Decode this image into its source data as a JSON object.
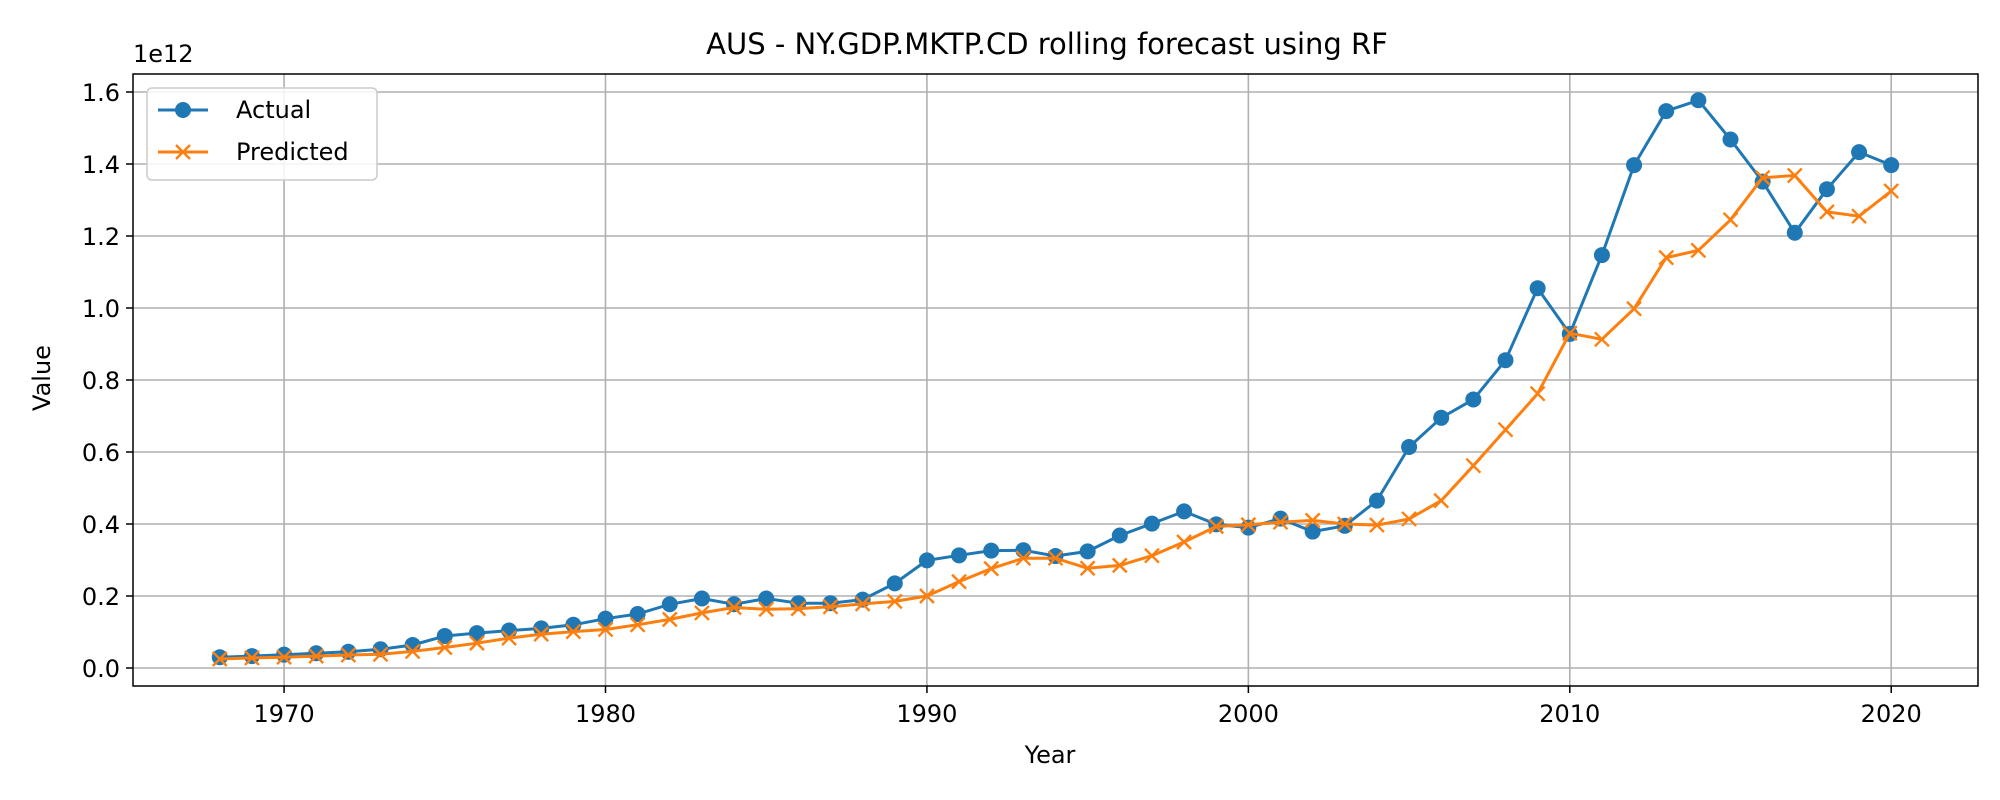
{
  "chart_data": {
    "type": "line",
    "title": "AUS - NY.GDP.MKTP.CD rolling forecast using RF",
    "xlabel": "Year",
    "ylabel": "Value",
    "y_offset_label": "1e12",
    "xlim": [
      1965.3,
      2022.7
    ],
    "ylim": [
      -0.05,
      1.65
    ],
    "x_ticks": [
      1970,
      1980,
      1990,
      2000,
      2010,
      2020
    ],
    "x_tick_labels": [
      "1970",
      "1980",
      "1990",
      "2000",
      "2010",
      "2020"
    ],
    "y_ticks": [
      0.0,
      0.2,
      0.4,
      0.6,
      0.8,
      1.0,
      1.2,
      1.4,
      1.6
    ],
    "y_tick_labels": [
      "0.0",
      "0.2",
      "0.4",
      "0.6",
      "0.8",
      "1.0",
      "1.2",
      "1.4",
      "1.6"
    ],
    "grid": true,
    "legend_position": "top-left",
    "x": [
      1968,
      1969,
      1970,
      1971,
      1972,
      1973,
      1974,
      1975,
      1976,
      1977,
      1978,
      1979,
      1980,
      1981,
      1982,
      1983,
      1984,
      1985,
      1986,
      1987,
      1988,
      1989,
      1990,
      1991,
      1992,
      1993,
      1994,
      1995,
      1996,
      1997,
      1998,
      1999,
      2000,
      2001,
      2002,
      2003,
      2004,
      2005,
      2006,
      2007,
      2008,
      2009,
      2010,
      2011,
      2012,
      2013,
      2014,
      2015,
      2016,
      2017,
      2018,
      2019,
      2020
    ],
    "series": [
      {
        "name": "Actual",
        "color": "#1f77b4",
        "marker": "circle",
        "values": [
          0.03,
          0.033,
          0.037,
          0.041,
          0.045,
          0.052,
          0.064,
          0.089,
          0.097,
          0.104,
          0.11,
          0.12,
          0.137,
          0.15,
          0.177,
          0.193,
          0.177,
          0.193,
          0.18,
          0.18,
          0.19,
          0.235,
          0.299,
          0.313,
          0.326,
          0.327,
          0.311,
          0.324,
          0.368,
          0.401,
          0.435,
          0.399,
          0.39,
          0.415,
          0.379,
          0.395,
          0.465,
          0.614,
          0.695,
          0.746,
          0.855,
          1.055,
          0.928,
          1.147,
          1.397,
          1.547,
          1.577,
          1.468,
          1.351,
          1.209,
          1.33,
          1.433,
          1.397
        ]
      },
      {
        "name": "Predicted",
        "color": "#ff7f0e",
        "marker": "x",
        "values": [
          0.025,
          0.028,
          0.03,
          0.033,
          0.036,
          0.038,
          0.046,
          0.057,
          0.069,
          0.083,
          0.094,
          0.101,
          0.107,
          0.12,
          0.135,
          0.153,
          0.168,
          0.163,
          0.165,
          0.17,
          0.178,
          0.185,
          0.2,
          0.24,
          0.276,
          0.305,
          0.305,
          0.277,
          0.285,
          0.312,
          0.35,
          0.393,
          0.398,
          0.405,
          0.41,
          0.4,
          0.397,
          0.414,
          0.465,
          0.562,
          0.662,
          0.762,
          0.93,
          0.913,
          0.998,
          1.14,
          1.16,
          1.245,
          1.362,
          1.368,
          1.267,
          1.255,
          1.325
        ]
      }
    ]
  }
}
